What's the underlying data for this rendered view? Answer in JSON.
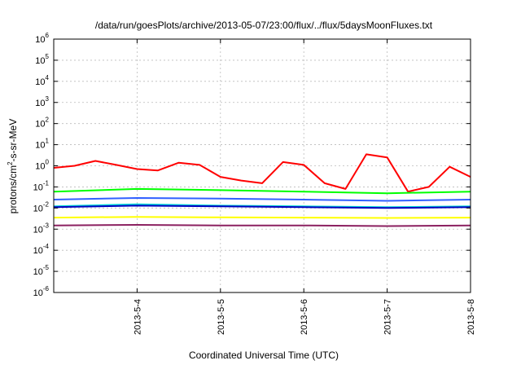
{
  "chart_data": {
    "type": "line",
    "title": "/data/run/goesPlots/archive/2013-05-07/23:00/flux/../flux/5daysMoonFluxes.txt",
    "xlabel": "Coordinated Universal Time (UTC)",
    "ylabel": {
      "prefix": "protons/cm",
      "superscript": "2",
      "suffix": "-s-sr-MeV"
    },
    "yscale": "log",
    "ylim": [
      1e-06,
      1000000.0
    ],
    "y_ticks": [
      {
        "base": "10",
        "exp": "-6"
      },
      {
        "base": "10",
        "exp": "-5"
      },
      {
        "base": "10",
        "exp": "-4"
      },
      {
        "base": "10",
        "exp": "-3"
      },
      {
        "base": "10",
        "exp": "-2"
      },
      {
        "base": "10",
        "exp": "-1"
      },
      {
        "base": "10",
        "exp": "0"
      },
      {
        "base": "10",
        "exp": "1"
      },
      {
        "base": "10",
        "exp": "2"
      },
      {
        "base": "10",
        "exp": "3"
      },
      {
        "base": "10",
        "exp": "4"
      },
      {
        "base": "10",
        "exp": "5"
      },
      {
        "base": "10",
        "exp": "6"
      }
    ],
    "xlim": [
      "2013-05-03 00:00",
      "2013-05-08 00:00"
    ],
    "x_ticks": [
      {
        "label": "2013-5-4",
        "x": "2013-05-04 00:00"
      },
      {
        "label": "2013-5-5",
        "x": "2013-05-05 00:00"
      },
      {
        "label": "2013-5-6",
        "x": "2013-05-06 00:00"
      },
      {
        "label": "2013-5-7",
        "x": "2013-05-07 00:00"
      },
      {
        "label": "2013-5-8",
        "x": "2013-05-08 00:00"
      }
    ],
    "grid": true,
    "series": [
      {
        "color": "#ff0000",
        "x": [
          "2013-05-03 00:00",
          "2013-05-03 06:00",
          "2013-05-03 12:00",
          "2013-05-03 18:00",
          "2013-05-04 00:00",
          "2013-05-04 06:00",
          "2013-05-04 12:00",
          "2013-05-04 18:00",
          "2013-05-05 00:00",
          "2013-05-05 06:00",
          "2013-05-05 12:00",
          "2013-05-05 18:00",
          "2013-05-06 00:00",
          "2013-05-06 06:00",
          "2013-05-06 12:00",
          "2013-05-06 18:00",
          "2013-05-07 00:00",
          "2013-05-07 06:00",
          "2013-05-07 12:00",
          "2013-05-07 18:00",
          "2013-05-08 00:00"
        ],
        "values": [
          0.8,
          1.0,
          1.7,
          1.1,
          0.7,
          0.6,
          1.4,
          1.1,
          0.3,
          0.2,
          0.15,
          1.5,
          1.1,
          0.15,
          0.08,
          3.5,
          2.5,
          0.06,
          0.1,
          0.9,
          0.3
        ]
      },
      {
        "color": "#00ff00",
        "x": [
          "2013-05-03 00:00",
          "2013-05-04 00:00",
          "2013-05-05 00:00",
          "2013-05-06 00:00",
          "2013-05-07 00:00",
          "2013-05-08 00:00"
        ],
        "values": [
          0.06,
          0.08,
          0.07,
          0.06,
          0.05,
          0.06
        ]
      },
      {
        "color": "#00d8d8",
        "x": [
          "2013-05-03 00:00",
          "2013-05-04 00:00",
          "2013-05-05 00:00",
          "2013-05-06 00:00",
          "2013-05-07 00:00",
          "2013-05-08 00:00"
        ],
        "values": [
          0.012,
          0.015,
          0.013,
          0.012,
          0.011,
          0.012
        ]
      },
      {
        "color": "#3060ff",
        "x": [
          "2013-05-03 00:00",
          "2013-05-04 00:00",
          "2013-05-05 00:00",
          "2013-05-06 00:00",
          "2013-05-07 00:00",
          "2013-05-08 00:00"
        ],
        "values": [
          0.025,
          0.03,
          0.028,
          0.025,
          0.022,
          0.025
        ]
      },
      {
        "color": "#0000c0",
        "x": [
          "2013-05-03 00:00",
          "2013-05-04 00:00",
          "2013-05-05 00:00",
          "2013-05-06 00:00",
          "2013-05-07 00:00",
          "2013-05-08 00:00"
        ],
        "values": [
          0.011,
          0.013,
          0.012,
          0.011,
          0.01,
          0.011
        ]
      },
      {
        "color": "#ffff00",
        "x": [
          "2013-05-03 00:00",
          "2013-05-04 00:00",
          "2013-05-05 00:00",
          "2013-05-06 00:00",
          "2013-05-07 00:00",
          "2013-05-08 00:00"
        ],
        "values": [
          0.0035,
          0.0038,
          0.0036,
          0.0035,
          0.0034,
          0.0035
        ]
      },
      {
        "color": "#8b2060",
        "x": [
          "2013-05-03 00:00",
          "2013-05-04 00:00",
          "2013-05-05 00:00",
          "2013-05-06 00:00",
          "2013-05-07 00:00",
          "2013-05-08 00:00"
        ],
        "values": [
          0.0015,
          0.0016,
          0.0015,
          0.0015,
          0.0014,
          0.0015
        ]
      }
    ]
  }
}
